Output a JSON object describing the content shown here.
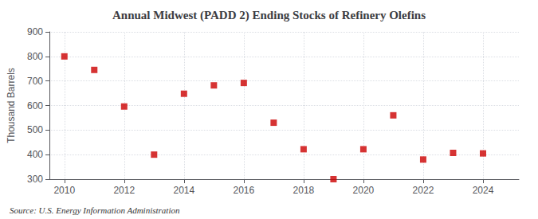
{
  "chart_data": {
    "type": "scatter",
    "title": "Annual Midwest (PADD 2) Ending Stocks of Refinery Olefins",
    "ylabel": "Thousand Barrels",
    "annotation": "Source: U.S. Energy Information Administration",
    "x": [
      2010,
      2011,
      2012,
      2013,
      2014,
      2015,
      2016,
      2017,
      2018,
      2019,
      2020,
      2021,
      2022,
      2023,
      2024
    ],
    "values": [
      800,
      745,
      596,
      400,
      648,
      682,
      692,
      530,
      422,
      300,
      422,
      560,
      380,
      407,
      405
    ],
    "color": "#cc0000",
    "marker": "square",
    "xlim": [
      2009.5,
      2025.2
    ],
    "xticks": [
      2010,
      2012,
      2014,
      2016,
      2018,
      2020,
      2022,
      2024
    ],
    "ylim": [
      300,
      900
    ],
    "yticks": [
      300,
      400,
      500,
      600,
      700,
      800,
      900
    ],
    "grid": true
  }
}
